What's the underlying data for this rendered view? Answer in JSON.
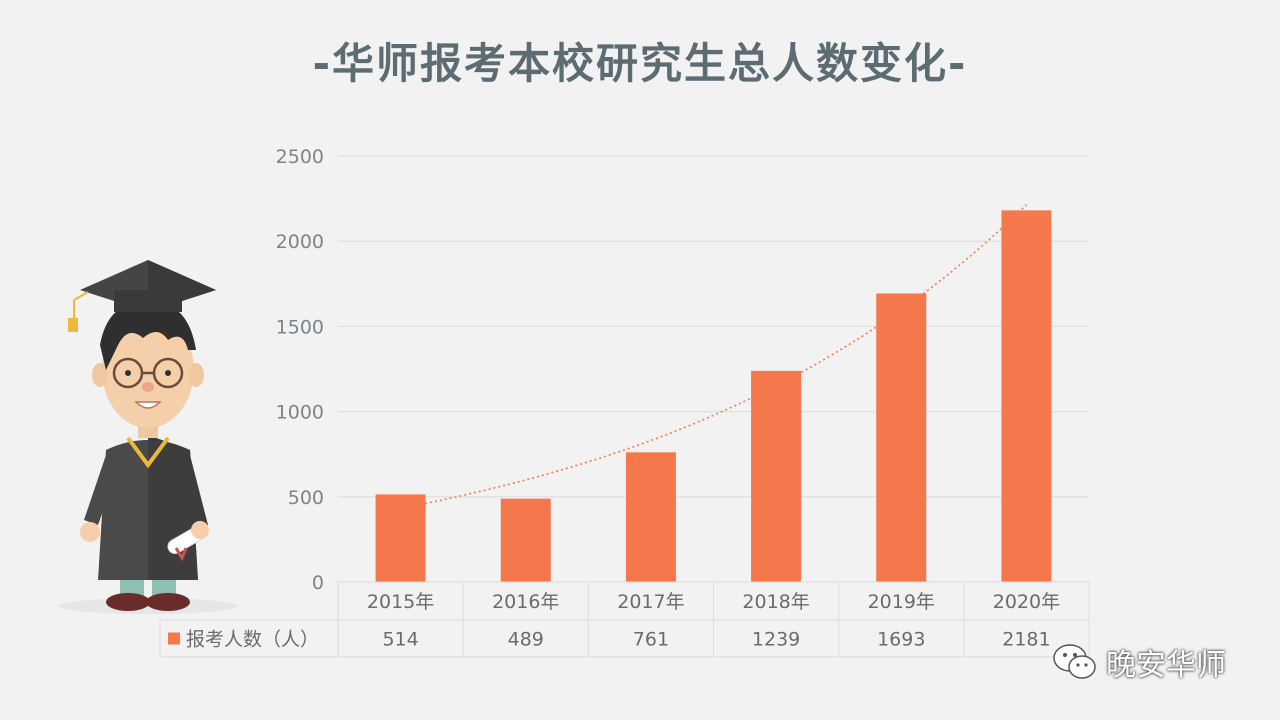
{
  "title": "-华师报考本校研究生总人数变化-",
  "watermark": {
    "text": "晚安华师",
    "icon": "wechat-icon"
  },
  "illustration": {
    "icon": "graduate-student-illustration"
  },
  "colors": {
    "bar": "#f4784b",
    "trend": "#f4784b",
    "grid": "#dcdcdc",
    "text": "#6b6b6b"
  },
  "chart_data": {
    "type": "bar",
    "categories": [
      "2015年",
      "2016年",
      "2017年",
      "2018年",
      "2019年",
      "2020年"
    ],
    "series": [
      {
        "name": "报考人数（人）",
        "values": [
          514,
          489,
          761,
          1239,
          1693,
          2181
        ]
      }
    ],
    "yticks": [
      0,
      500,
      1000,
      1500,
      2000,
      2500
    ],
    "ylim": [
      0,
      2500
    ],
    "trendline": "exponential, dotted",
    "grid": true,
    "data_table": true,
    "xlabel": "",
    "ylabel": ""
  }
}
